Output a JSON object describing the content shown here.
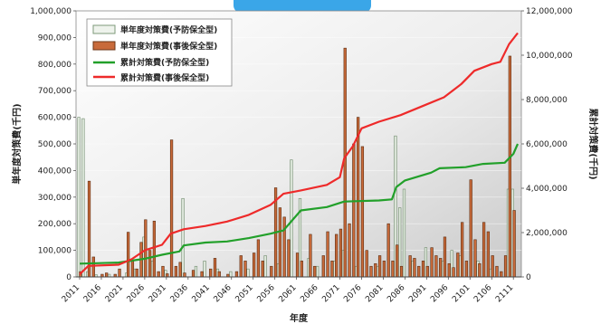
{
  "chart_data": {
    "type": "bar",
    "title": "",
    "xlabel": "年度",
    "ylabel_left": "単年度対策費(千円)",
    "ylabel_right": "累計対策費(千円)",
    "ylim_left": [
      0,
      1000000
    ],
    "ylim_right": [
      0,
      12000000
    ],
    "yticks_left": [
      "0",
      "100,000",
      "200,000",
      "300,000",
      "400,000",
      "500,000",
      "600,000",
      "700,000",
      "800,000",
      "900,000",
      "1,000,000"
    ],
    "yticks_right": [
      "0",
      "2,000,000",
      "4,000,000",
      "6,000,000",
      "8,000,000",
      "10,000,000",
      "12,000,000"
    ],
    "x_range": [
      2011,
      2112
    ],
    "xticks": [
      "2011",
      "2016",
      "2021",
      "2026",
      "2031",
      "2036",
      "2041",
      "2046",
      "2051",
      "2056",
      "2061",
      "2066",
      "2071",
      "2076",
      "2081",
      "2086",
      "2091",
      "2096",
      "2101",
      "2106",
      "2111"
    ],
    "grid": true,
    "legend_position": "top-left",
    "legend": [
      {
        "label": "単年度対策費(予防保全型)",
        "kind": "bar",
        "color": "#9fb59a"
      },
      {
        "label": "単年度対策費(事後保全型)",
        "kind": "bar",
        "color": "#c86a3a"
      },
      {
        "label": "累計対策費(予防保全型)",
        "kind": "line",
        "color": "#22a02a"
      },
      {
        "label": "累計対策費(事後保全型)",
        "kind": "line",
        "color": "#ee2a2a"
      }
    ],
    "series": [
      {
        "name": "単年度対策費(予防保全型)",
        "type": "bar",
        "axis": "left",
        "color": "#9fb59a",
        "points": [
          [
            2011,
            600000
          ],
          [
            2012,
            595000
          ],
          [
            2013,
            20000
          ],
          [
            2015,
            8000
          ],
          [
            2018,
            10000
          ],
          [
            2022,
            15000
          ],
          [
            2024,
            30000
          ],
          [
            2026,
            150000
          ],
          [
            2028,
            60000
          ],
          [
            2031,
            25000
          ],
          [
            2035,
            295000
          ],
          [
            2038,
            40000
          ],
          [
            2040,
            60000
          ],
          [
            2043,
            30000
          ],
          [
            2046,
            20000
          ],
          [
            2050,
            30000
          ],
          [
            2054,
            80000
          ],
          [
            2057,
            50000
          ],
          [
            2060,
            440000
          ],
          [
            2062,
            295000
          ],
          [
            2064,
            70000
          ],
          [
            2066,
            40000
          ],
          [
            2070,
            60000
          ],
          [
            2072,
            100000
          ],
          [
            2075,
            40000
          ],
          [
            2080,
            40000
          ],
          [
            2084,
            530000
          ],
          [
            2085,
            260000
          ],
          [
            2086,
            330000
          ],
          [
            2088,
            60000
          ],
          [
            2091,
            110000
          ],
          [
            2095,
            60000
          ],
          [
            2097,
            100000
          ],
          [
            2099,
            80000
          ],
          [
            2103,
            60000
          ],
          [
            2106,
            30000
          ],
          [
            2110,
            330000
          ],
          [
            2111,
            330000
          ]
        ]
      },
      {
        "name": "単年度対策費(事後保全型)",
        "type": "bar",
        "axis": "left",
        "color": "#c86a3a",
        "points": [
          [
            2011,
            20000
          ],
          [
            2013,
            360000
          ],
          [
            2014,
            75000
          ],
          [
            2016,
            10000
          ],
          [
            2017,
            15000
          ],
          [
            2019,
            10000
          ],
          [
            2020,
            30000
          ],
          [
            2022,
            168000
          ],
          [
            2023,
            60000
          ],
          [
            2024,
            30000
          ],
          [
            2025,
            130000
          ],
          [
            2026,
            215000
          ],
          [
            2027,
            100000
          ],
          [
            2028,
            210000
          ],
          [
            2029,
            20000
          ],
          [
            2030,
            40000
          ],
          [
            2031,
            12000
          ],
          [
            2032,
            515000
          ],
          [
            2033,
            40000
          ],
          [
            2034,
            55000
          ],
          [
            2035,
            15000
          ],
          [
            2037,
            25000
          ],
          [
            2039,
            20000
          ],
          [
            2041,
            30000
          ],
          [
            2042,
            70000
          ],
          [
            2043,
            20000
          ],
          [
            2045,
            10000
          ],
          [
            2047,
            20000
          ],
          [
            2048,
            80000
          ],
          [
            2049,
            60000
          ],
          [
            2051,
            90000
          ],
          [
            2052,
            140000
          ],
          [
            2053,
            60000
          ],
          [
            2055,
            40000
          ],
          [
            2056,
            335000
          ],
          [
            2057,
            260000
          ],
          [
            2058,
            225000
          ],
          [
            2059,
            140000
          ],
          [
            2061,
            90000
          ],
          [
            2062,
            60000
          ],
          [
            2064,
            160000
          ],
          [
            2065,
            40000
          ],
          [
            2067,
            80000
          ],
          [
            2068,
            170000
          ],
          [
            2069,
            60000
          ],
          [
            2070,
            160000
          ],
          [
            2071,
            180000
          ],
          [
            2072,
            860000
          ],
          [
            2073,
            200000
          ],
          [
            2074,
            500000
          ],
          [
            2075,
            600000
          ],
          [
            2076,
            490000
          ],
          [
            2077,
            100000
          ],
          [
            2078,
            40000
          ],
          [
            2079,
            50000
          ],
          [
            2080,
            80000
          ],
          [
            2081,
            60000
          ],
          [
            2082,
            200000
          ],
          [
            2083,
            60000
          ],
          [
            2084,
            120000
          ],
          [
            2085,
            40000
          ],
          [
            2087,
            80000
          ],
          [
            2088,
            70000
          ],
          [
            2089,
            40000
          ],
          [
            2090,
            60000
          ],
          [
            2091,
            40000
          ],
          [
            2092,
            110000
          ],
          [
            2093,
            80000
          ],
          [
            2094,
            70000
          ],
          [
            2095,
            150000
          ],
          [
            2096,
            50000
          ],
          [
            2097,
            35000
          ],
          [
            2098,
            90000
          ],
          [
            2099,
            205000
          ],
          [
            2100,
            60000
          ],
          [
            2101,
            365000
          ],
          [
            2102,
            140000
          ],
          [
            2103,
            50000
          ],
          [
            2104,
            205000
          ],
          [
            2105,
            170000
          ],
          [
            2106,
            80000
          ],
          [
            2107,
            40000
          ],
          [
            2108,
            20000
          ],
          [
            2109,
            80000
          ],
          [
            2110,
            830000
          ],
          [
            2111,
            250000
          ]
        ]
      },
      {
        "name": "累計対策費(予防保全型)",
        "type": "line",
        "axis": "right",
        "color": "#22a02a",
        "points": [
          [
            2011,
            600000
          ],
          [
            2015,
            620000
          ],
          [
            2020,
            650000
          ],
          [
            2026,
            820000
          ],
          [
            2030,
            1000000
          ],
          [
            2034,
            1150000
          ],
          [
            2035,
            1420000
          ],
          [
            2040,
            1550000
          ],
          [
            2045,
            1600000
          ],
          [
            2050,
            1750000
          ],
          [
            2055,
            1950000
          ],
          [
            2058,
            2100000
          ],
          [
            2060,
            2550000
          ],
          [
            2062,
            3000000
          ],
          [
            2068,
            3150000
          ],
          [
            2072,
            3400000
          ],
          [
            2080,
            3450000
          ],
          [
            2083,
            3500000
          ],
          [
            2084,
            4050000
          ],
          [
            2086,
            4350000
          ],
          [
            2092,
            4700000
          ],
          [
            2094,
            4900000
          ],
          [
            2100,
            4950000
          ],
          [
            2104,
            5100000
          ],
          [
            2109,
            5150000
          ],
          [
            2111,
            5550000
          ],
          [
            2112,
            6000000
          ]
        ]
      },
      {
        "name": "累計対策費(事後保全型)",
        "type": "line",
        "axis": "right",
        "color": "#ee2a2a",
        "points": [
          [
            2011,
            120000
          ],
          [
            2013,
            500000
          ],
          [
            2020,
            550000
          ],
          [
            2023,
            800000
          ],
          [
            2026,
            1200000
          ],
          [
            2030,
            1450000
          ],
          [
            2032,
            1950000
          ],
          [
            2035,
            2150000
          ],
          [
            2040,
            2300000
          ],
          [
            2045,
            2500000
          ],
          [
            2050,
            2800000
          ],
          [
            2055,
            3250000
          ],
          [
            2058,
            3750000
          ],
          [
            2062,
            3900000
          ],
          [
            2068,
            4150000
          ],
          [
            2071,
            4500000
          ],
          [
            2072,
            5350000
          ],
          [
            2074,
            5900000
          ],
          [
            2076,
            6700000
          ],
          [
            2080,
            7000000
          ],
          [
            2085,
            7300000
          ],
          [
            2090,
            7700000
          ],
          [
            2095,
            8100000
          ],
          [
            2099,
            8700000
          ],
          [
            2102,
            9300000
          ],
          [
            2106,
            9600000
          ],
          [
            2108,
            9700000
          ],
          [
            2110,
            10500000
          ],
          [
            2112,
            11000000
          ]
        ]
      }
    ]
  }
}
